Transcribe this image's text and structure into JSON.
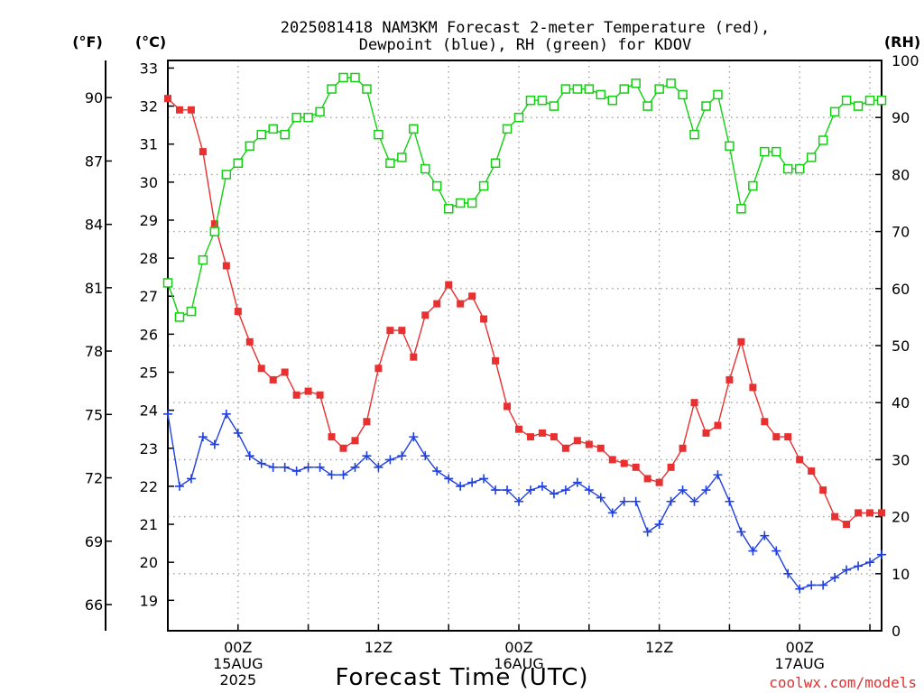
{
  "title_line1": "2025081418 NAM3KM Forecast 2-meter Temperature (red),",
  "title_line2": "Dewpoint (blue), RH (green) for KDOV",
  "credit": "coolwx.com/models",
  "colors": {
    "temperature": "#e83030",
    "dewpoint": "#2040e0",
    "rh": "#10d010",
    "grid": "#a0a0a0"
  },
  "chart_data": {
    "type": "line",
    "title": "2025081418 NAM3KM Forecast 2-meter Temperature (red), Dewpoint (blue), RH (green) for KDOV",
    "xlabel": "Forecast Time (UTC)",
    "x_unit": "forecast hour (0 = 2025081418)",
    "xlim": [
      0,
      61
    ],
    "left_axis": {
      "label": "(°C)",
      "ylim": [
        18.2,
        33.2
      ],
      "ticks": [
        "19",
        "20",
        "21",
        "22",
        "23",
        "24",
        "25",
        "26",
        "27",
        "28",
        "29",
        "30",
        "31",
        "32",
        "33"
      ]
    },
    "far_left_axis": {
      "label": "(°F)",
      "ticks": [
        "66",
        "69",
        "72",
        "75",
        "78",
        "81",
        "84",
        "87",
        "90"
      ]
    },
    "right_axis": {
      "label": "(RH)",
      "ylim": [
        0,
        100
      ],
      "ticks": [
        "0",
        "10",
        "20",
        "30",
        "40",
        "50",
        "60",
        "70",
        "80",
        "90",
        "100"
      ]
    },
    "x_ticks": [
      {
        "hour": 6,
        "line1": "00Z",
        "line2": "15AUG",
        "line3": "2025"
      },
      {
        "hour": 18,
        "line1": "12Z",
        "line2": "",
        "line3": ""
      },
      {
        "hour": 30,
        "line1": "00Z",
        "line2": "16AUG",
        "line3": ""
      },
      {
        "hour": 42,
        "line1": "12Z",
        "line2": "",
        "line3": ""
      },
      {
        "hour": 54,
        "line1": "00Z",
        "line2": "17AUG",
        "line3": ""
      }
    ],
    "grid": true,
    "x": [
      0,
      1,
      2,
      3,
      4,
      5,
      6,
      7,
      8,
      9,
      10,
      11,
      12,
      13,
      14,
      15,
      16,
      17,
      18,
      19,
      20,
      21,
      22,
      23,
      24,
      25,
      26,
      27,
      28,
      29,
      30,
      31,
      32,
      33,
      34,
      35,
      36,
      37,
      38,
      39,
      40,
      41,
      42,
      43,
      44,
      45,
      46,
      47,
      48,
      49,
      50,
      51,
      52,
      53,
      54,
      55,
      56,
      57,
      58,
      59,
      60,
      61
    ],
    "series": [
      {
        "name": "Temperature",
        "axis": "left",
        "unit": "°C",
        "marker": "filled-square",
        "values": [
          32.2,
          31.9,
          31.9,
          30.8,
          28.9,
          27.8,
          26.6,
          25.8,
          25.1,
          24.8,
          25.0,
          24.4,
          24.5,
          24.4,
          23.3,
          23.0,
          23.2,
          23.7,
          25.1,
          26.1,
          26.1,
          25.4,
          26.5,
          26.8,
          27.3,
          26.8,
          27.0,
          26.4,
          25.3,
          24.1,
          23.5,
          23.3,
          23.4,
          23.3,
          23.0,
          23.2,
          23.1,
          23.0,
          22.7,
          22.6,
          22.5,
          22.2,
          22.1,
          22.5,
          23.0,
          24.2,
          23.4,
          23.6,
          24.8,
          25.8,
          24.6,
          23.7,
          23.3,
          23.3,
          22.7,
          22.4,
          21.9,
          21.2,
          21.0,
          21.3,
          21.3,
          21.3
        ]
      },
      {
        "name": "Dewpoint",
        "axis": "left",
        "unit": "°C",
        "marker": "plus",
        "values": [
          23.9,
          22.0,
          22.2,
          23.3,
          23.1,
          23.9,
          23.4,
          22.8,
          22.6,
          22.5,
          22.5,
          22.4,
          22.5,
          22.5,
          22.3,
          22.3,
          22.5,
          22.8,
          22.5,
          22.7,
          22.8,
          23.3,
          22.8,
          22.4,
          22.2,
          22.0,
          22.1,
          22.2,
          21.9,
          21.9,
          21.6,
          21.9,
          22.0,
          21.8,
          21.9,
          22.1,
          21.9,
          21.7,
          21.3,
          21.6,
          21.6,
          20.8,
          21.0,
          21.6,
          21.9,
          21.6,
          21.9,
          22.3,
          21.6,
          20.8,
          20.3,
          20.7,
          20.3,
          19.7,
          19.3,
          19.4,
          19.4,
          19.6,
          19.8,
          19.9,
          20.0,
          20.2
        ]
      },
      {
        "name": "RH",
        "axis": "right",
        "unit": "%",
        "marker": "open-square",
        "values": [
          61,
          55,
          56,
          65,
          70,
          80,
          82,
          85,
          87,
          88,
          87,
          90,
          90,
          91,
          95,
          97,
          97,
          95,
          87,
          82,
          83,
          88,
          81,
          78,
          74,
          75,
          75,
          78,
          82,
          88,
          90,
          93,
          93,
          92,
          95,
          95,
          95,
          94,
          93,
          95,
          96,
          92,
          95,
          96,
          94,
          87,
          92,
          94,
          85,
          74,
          78,
          84,
          84,
          81,
          81,
          83,
          86,
          91,
          93,
          92,
          93,
          93
        ]
      }
    ]
  }
}
